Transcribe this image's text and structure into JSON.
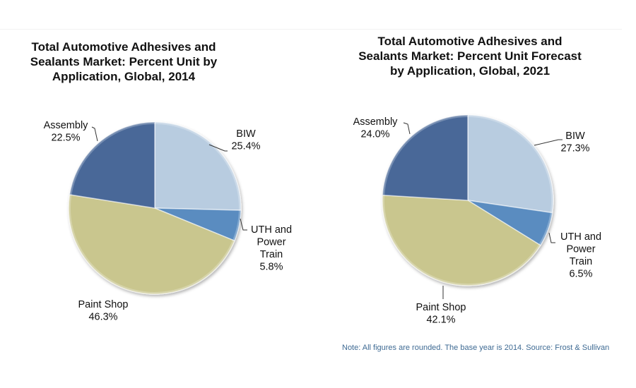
{
  "chart_data": [
    {
      "type": "pie",
      "title": "Total Automotive Adhesives and\nSealants Market: Percent Unit by\nApplication, Global, 2014",
      "unit": "%",
      "slices": [
        {
          "label": "BIW",
          "value": 25.4,
          "value_text": "25.4%",
          "color": "#b8cce0"
        },
        {
          "label": "UTH and\nPower\nTrain",
          "value": 5.8,
          "value_text": "5.8%",
          "color": "#5a8cc0"
        },
        {
          "label": "Paint Shop",
          "value": 46.3,
          "value_text": "46.3%",
          "color": "#c9c68e"
        },
        {
          "label": "Assembly",
          "value": 22.5,
          "value_text": "22.5%",
          "color": "#4a6898"
        }
      ]
    },
    {
      "type": "pie",
      "title": "Total Automotive Adhesives and\nSealants Market: Percent Unit Forecast\nby Application, Global, 2021",
      "unit": "%",
      "slices": [
        {
          "label": "BIW",
          "value": 27.3,
          "value_text": "27.3%",
          "color": "#b8cce0"
        },
        {
          "label": "UTH and\nPower\nTrain",
          "value": 6.5,
          "value_text": "6.5%",
          "color": "#5a8cc0"
        },
        {
          "label": "Paint Shop",
          "value": 42.1,
          "value_text": "42.1%",
          "color": "#c9c68e"
        },
        {
          "label": "Assembly",
          "value": 24.0,
          "value_text": "24.0%",
          "color": "#4a6898"
        }
      ]
    }
  ],
  "note": "Note: All figures are rounded. The base year is 2014. Source: Frost & Sullivan"
}
